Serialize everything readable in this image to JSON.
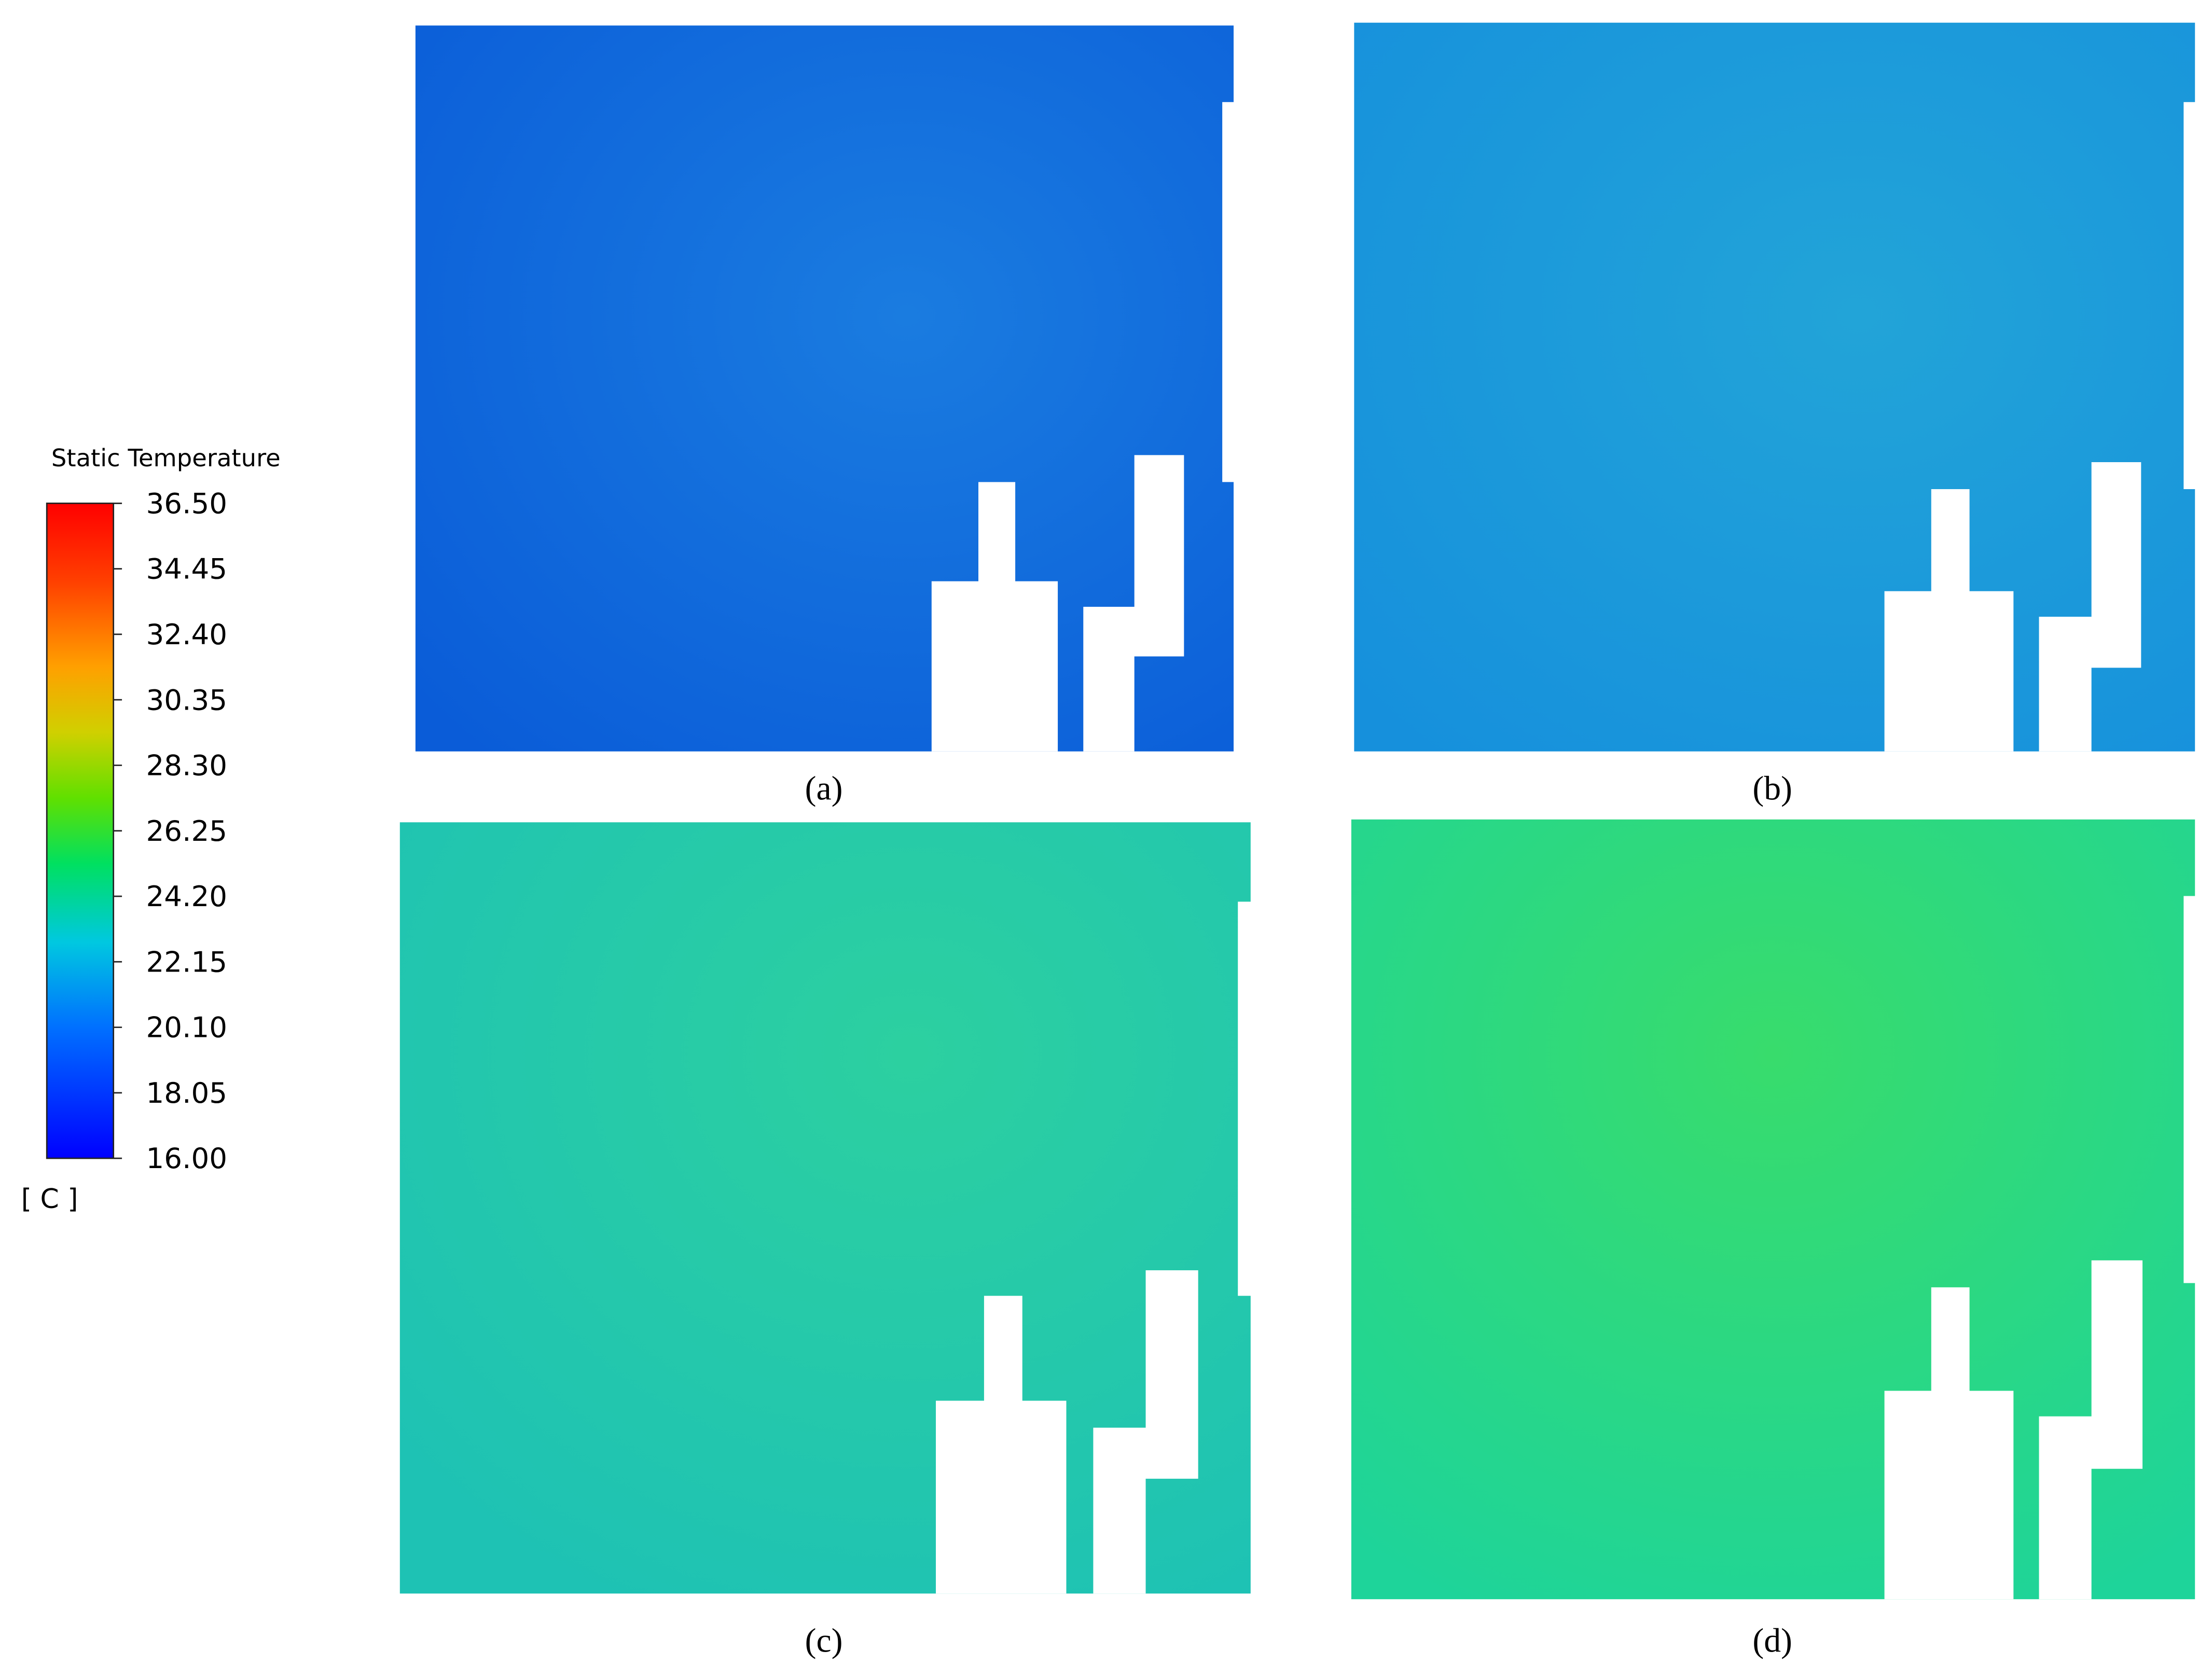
{
  "legend": {
    "title": "Static Temperature",
    "unit": "[ C ]",
    "ticks": [
      "36.50",
      "34.45",
      "32.40",
      "30.35",
      "28.30",
      "26.25",
      "24.20",
      "22.15",
      "20.10",
      "18.05",
      "16.00"
    ]
  },
  "panels": [
    {
      "label": "(a)"
    },
    {
      "label": "(b)"
    },
    {
      "label": "(c)"
    },
    {
      "label": "(d)"
    }
  ]
}
